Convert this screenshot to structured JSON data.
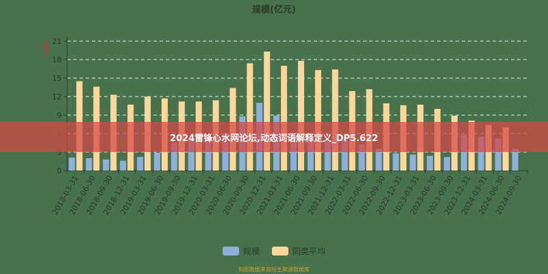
{
  "chart_data": {
    "type": "bar",
    "title": "规模(亿元)",
    "xlabel": "",
    "ylabel": "亿元",
    "ylim": [
      0,
      21
    ],
    "yticks": [
      0,
      3,
      6,
      9,
      12,
      15,
      18,
      21
    ],
    "grid": true,
    "legend_position": "bottom",
    "categories": [
      "2018-03-31",
      "2018-06-30",
      "2018-09-30",
      "2018-12-31",
      "2019-03-31",
      "2019-06-30",
      "2019-09-30",
      "2019-12-31",
      "2020-03-31",
      "2020-06-30",
      "2020-09-30",
      "2020-12-31",
      "2021-03-31",
      "2021-06-30",
      "2021-09-30",
      "2021-12-31",
      "2022-03-31",
      "2022-06-30",
      "2022-09-30",
      "2022-12-31",
      "2023-03-31",
      "2023-06-30",
      "2023-09-30",
      "2023-12-31",
      "2024-03-31",
      "2024-06-30",
      "2024-09-30"
    ],
    "series": [
      {
        "name": "规模",
        "color": "#8fb0dc",
        "values": [
          2.1,
          2.0,
          1.8,
          1.6,
          2.2,
          2.9,
          4.5,
          5.2,
          5.2,
          6.0,
          8.8,
          11.0,
          8.9,
          6.0,
          5.0,
          4.8,
          5.0,
          4.3,
          3.5,
          2.8,
          2.6,
          2.4,
          2.2,
          5.8,
          5.5,
          5.2,
          3.5
        ]
      },
      {
        "name": "同类平均",
        "color": "#fbd89a",
        "values": [
          14.5,
          13.6,
          12.3,
          10.7,
          12.0,
          11.7,
          11.2,
          11.2,
          11.4,
          13.4,
          17.4,
          19.3,
          17.0,
          17.8,
          16.3,
          16.4,
          12.9,
          13.2,
          10.9,
          10.6,
          10.7,
          10.0,
          8.9,
          8.1,
          7.4,
          7.0,
          null
        ]
      }
    ]
  },
  "labels": {
    "title": "规模(亿元)",
    "ylabel": "亿元",
    "legend": [
      "规模",
      "同类平均"
    ],
    "source": "制图数据来自恒生聚源数据库",
    "banner": "2024雷锋心水网论坛,动态词语解释定义_DP5.622"
  },
  "colors": {
    "background": "#47724b",
    "scale_bar": "#8fb0dc",
    "avg_bar": "#fbd89a",
    "banner": "#d64646",
    "source_text": "#c9a227"
  }
}
